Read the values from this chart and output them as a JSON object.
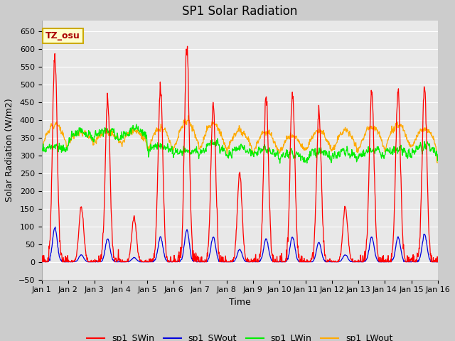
{
  "title": "SP1 Solar Radiation",
  "xlabel": "Time",
  "ylabel": "Solar Radiation (W/m2)",
  "ylim": [
    -50,
    680
  ],
  "yticks": [
    -50,
    0,
    50,
    100,
    150,
    200,
    250,
    300,
    350,
    400,
    450,
    500,
    550,
    600,
    650
  ],
  "xlim_days": 15,
  "colors": {
    "SWin": "#ff0000",
    "SWout": "#0000dd",
    "LWin": "#00ee00",
    "LWout": "#ffaa00"
  },
  "legend_labels": [
    "sp1_SWin",
    "sp1_SWout",
    "sp1_LWin",
    "sp1_LWout"
  ],
  "annotation_text": "TZ_osu",
  "annotation_color": "#aa0000",
  "annotation_bg": "#ffffcc",
  "annotation_border": "#ccaa00",
  "plot_bg_color": "#e8e8e8",
  "fig_bg_color": "#cccccc",
  "grid_color": "#ffffff",
  "title_fontsize": 12,
  "axis_fontsize": 9,
  "tick_fontsize": 8,
  "legend_fontsize": 9
}
